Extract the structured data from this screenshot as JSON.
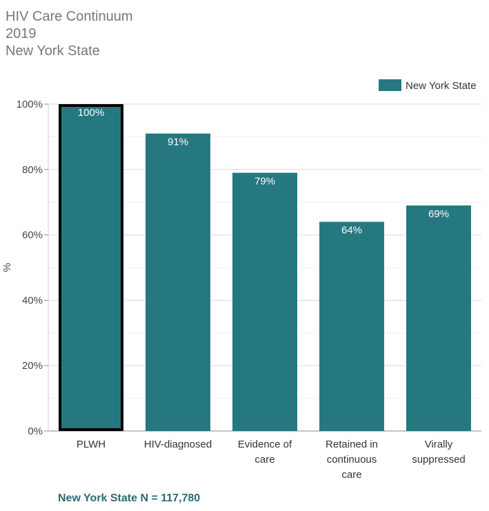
{
  "header": {
    "title": "HIV Care Continuum",
    "year": "2019",
    "region": "New York State"
  },
  "footnote": "New York State N = 117,780",
  "colors": {
    "bar": "#267880",
    "highlight_border": "#000000",
    "title": "#777777",
    "footnote": "#2a6b73"
  },
  "chart_data": {
    "type": "bar",
    "categories": [
      "PLWH",
      "HIV-diagnosed",
      "Evidence of care",
      "Retained in continuous care",
      "Virally suppressed"
    ],
    "category_lines": [
      [
        "PLWH"
      ],
      [
        "HIV-diagnosed"
      ],
      [
        "Evidence of",
        "care"
      ],
      [
        "Retained in",
        "continuous",
        "care"
      ],
      [
        "Virally",
        "suppressed"
      ]
    ],
    "series": [
      {
        "name": "New York State",
        "values": [
          100,
          91,
          79,
          64,
          69
        ]
      }
    ],
    "data_labels": [
      "100%",
      "91%",
      "79%",
      "64%",
      "69%"
    ],
    "ylabel": "%",
    "xlabel": "",
    "ylim": [
      0,
      100
    ],
    "yticks": [
      0,
      20,
      40,
      60,
      80,
      100
    ],
    "ytick_labels": [
      "0%",
      "20%",
      "40%",
      "60%",
      "80%",
      "100%"
    ],
    "highlighted_category": "PLWH",
    "grid": true,
    "legend_position": "top-right"
  }
}
